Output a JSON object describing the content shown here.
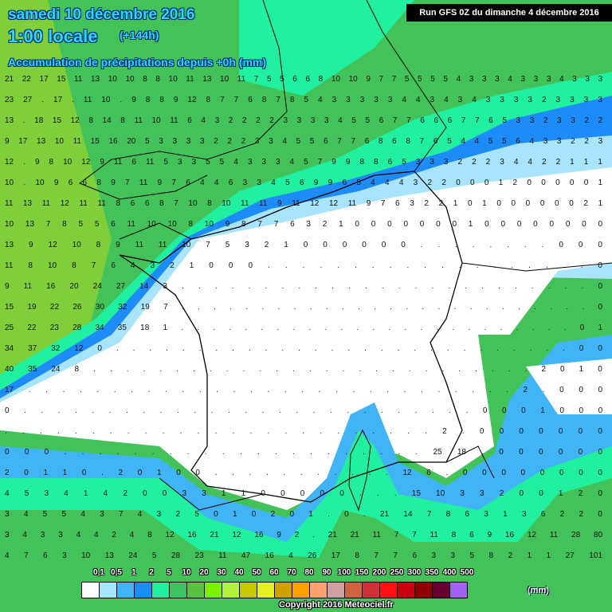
{
  "header": {
    "date": "samedi 10 décembre 2016",
    "time": "1:00 locale",
    "lead": "(+144h)",
    "field": "Accumulation de précipitations depuis +0h (mm)",
    "run": "Run GFS 0Z du dimanche 4 décembre 2016"
  },
  "legend": {
    "unit": "(mm)",
    "labels": [
      "0,1",
      "0,5",
      "1",
      "2",
      "5",
      "10",
      "20",
      "30",
      "40",
      "50",
      "60",
      "70",
      "80",
      "90",
      "100",
      "150",
      "200",
      "250",
      "300",
      "350",
      "400",
      "500"
    ],
    "colors": [
      "#ffffff",
      "#a8e4fc",
      "#40b4f4",
      "#1e8cf8",
      "#20f0a0",
      "#40c060",
      "#5cc040",
      "#7ef000",
      "#b4f040",
      "#c8c800",
      "#e4f020",
      "#d0a000",
      "#ffa000",
      "#ffa070",
      "#d0a0a0",
      "#d06440",
      "#d03038",
      "#ff1010",
      "#c80010",
      "#900000",
      "#680030",
      "#a060f0"
    ]
  },
  "copyright": "Copyright 2016 Meteociel.fr",
  "map_colors": {
    "base": "#44c25a",
    "cyan": "#20f0a0",
    "blue": "#1e8cf8",
    "lightblue": "#a8e4fc",
    "none": "#ffffff",
    "yellowgreen": "#7ecf3a"
  },
  "grid_values": [
    "21 22 17 15 11 13 10 10 8 8 10 11 13 10 11 7 5 5 6 6 8 10 10 9 7 7 5 5 5 5 4 3 3 3 4 3 3 3 4 3 3 3",
    "23 27 . 17 . 11 10 . 9 8 8 9 12 8 7 7 6 8 7 8 5 4 3 3 3 3 3 4 4 3 4 3 4 3 3 3 3 2 3 3 3 3",
    "13 . 18 15 12 8 14 8 11 10 11 6 4 3 2 2 2 2 3 3 3 3 4 5 5 6 7 7 6 6 6 7 7 6 5 3 3 2 3 3 2 2",
    "9 17 13 10 11 15 16 20 5 3 3 3 3 2 2 2 3 3 4 5 5 6 7 7 6 8 6 8 7 6 5 4 4 5 5 6 4 3 3 2 2 3",
    "12 . 9 8 10 12 9 11 6 11 5 3 3 5 5 4 3 3 3 4 5 7 9 9 8 8 6 5 3 3 3 2 2 2 3 4 4 2 2 1 1 1",
    "10 . 10 9 6 6 8 9 7 11 9 7 6 4 4 6 3 3 4 5 6 9 9 6 5 4 4 4 3 2 2 0 0 0 1 2 0 0 0 0 0 1",
    "11 13 11 12 11 11 8 6 6 8 7 10 8 10 11 11 9 11 12 12 11 9 7 6 3 2 2 1 0 1 0 0 0 0 0 0 2 1",
    "10 13 7 8 5 5 6 11 10 10 8 10 9 8 7 7 6 3 2 1 0 0 0 0 0 0 0 1 0 0 0 0 0 0 0 0",
    "13 9 12 10 8 9 11 11 10 7 5 3 2 1 0 0 0 0 0 0 . . . . . . . . 0 0 0",
    "11 8 10 8 7 6 4 3 2 1 0 0 0 . . . . . . . . . . . . . . . . . . . 0",
    "9 11 16 20 24 27 14 3 . . . . . . . . . . . . . . . . . . . . . . . . . 0",
    "15 19 22 26 30 32 19 7 . . . . . . . . . . . . . . . . . . . . . . . . . . 0",
    "25 22 23 28 34 35 18 1 . . . . . . . . . . . . . . . . . . . . . . . . . 0 1",
    "34 37 32 12 0 . . . . . . . . . . . . . . . . . . . . . . . . . . . . 0 0",
    "40 35 24 8 . . . . . . . . . . . . . . . . . . . . . . . . . . . 2 0 1 0",
    "17 . . . . . . . . . . . . . . . . . . . . . . . . . . . . . 2 . 0 0 0",
    "0 . . . . . . . . . . . . . . . . . . . . . . . . . . . 0 0 0 1 0 0 0",
    ". . . . . . . . . . . . . . . . . . . . . . . . . 2 . 0 0 0 0 0 0 0",
    "0 0 0 . . . . . . . . . . . . . . . . . . . . . 25 18 . 0 0 0 0 0 0",
    "2 0 1 1 0 . 2 0 1 0 0 . . . . . . . . . . . 12 6 . 0 0 0 0 0 0 0 0",
    "4 5 3 4 1 4 2 0 0 3 3 1 1 0 0 0 0 0 . . . 15 10 3 3 2 0 0 1 2 0",
    "3 4 5 5 4 3 7 4 3 2 5 0 1 0 2 0 1 . 0 . 21 14 7 8 6 3 1 3 6 2 2 0",
    "3 4 3 3 4 4 2 4 8 12 16 21 12 16 9 2 . 21 21 11 7 7 11 8 6 9 16 12 11 28 80",
    "4 7 6 3 10 13 24 5 28 23 11 47 16 4 26 17 8 7 7 6 3 3 5 8 2 1 1 27 101"
  ]
}
